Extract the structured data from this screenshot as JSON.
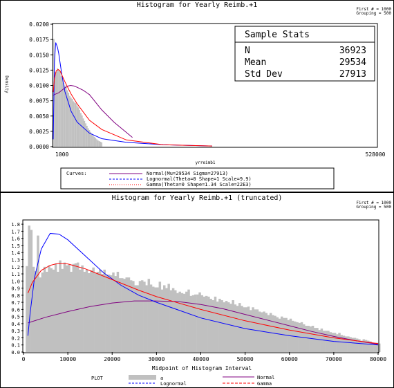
{
  "chart_data": [
    {
      "type": "histogram",
      "title": "Histogram for Yearly Reimb.+1",
      "corner_note": [
        "First # = 1000",
        "Grouping = 500"
      ],
      "xlabel": "yrreimb1",
      "ylabel": "Density",
      "x_ticks": [
        "1000",
        "528000"
      ],
      "xlim": [
        1000,
        528000
      ],
      "ylim": [
        0,
        0.02
      ],
      "y_ticks": [
        "0.0200",
        "0.0175",
        "0.0150",
        "0.0125",
        "0.0100",
        "0.0075",
        "0.0050",
        "0.0025",
        "0.0000"
      ],
      "stats_box": {
        "title": "Sample Stats",
        "rows": [
          {
            "label": "N",
            "value": "36923"
          },
          {
            "label": "Mean",
            "value": "29534"
          },
          {
            "label": "Std Dev",
            "value": "27913"
          }
        ]
      },
      "legend": {
        "label": "Curves:",
        "entries": [
          {
            "text": "Normal(Mu=29534 Sigma=27913)",
            "color": "#800080",
            "dash": "solid"
          },
          {
            "text": "Lognormal(Theta=0 Shape=1 Scale=9.9)",
            "color": "#0000ff",
            "dash": "dash"
          },
          {
            "text": "Gamma(Theta=0 Shape=1.34 Scale=22E3)",
            "color": "#ff0000",
            "dash": "dot"
          }
        ]
      },
      "bars": {
        "x": [
          1000,
          3000,
          5000,
          7000,
          9000,
          11000,
          13000,
          15000,
          17000,
          19000,
          21000,
          23000,
          25000,
          27000,
          29000,
          31000,
          33000,
          35000,
          37000,
          39000,
          41000,
          43000,
          45000,
          47000,
          49000,
          51000,
          53000,
          55000,
          57000,
          59000,
          61000,
          63000,
          65000,
          67000,
          69000,
          71000,
          73000,
          75000,
          77000,
          79000
        ],
        "values": [
          0.0176,
          0.0122,
          0.0122,
          0.0128,
          0.0126,
          0.0124,
          0.0115,
          0.0113,
          0.0104,
          0.01,
          0.0098,
          0.0092,
          0.0088,
          0.0083,
          0.008,
          0.0078,
          0.0074,
          0.0072,
          0.0071,
          0.0067,
          0.0064,
          0.006,
          0.0055,
          0.0051,
          0.0046,
          0.0042,
          0.0038,
          0.0034,
          0.003,
          0.0027,
          0.0024,
          0.0021,
          0.0018,
          0.0016,
          0.0014,
          0.0012,
          0.001,
          0.0009,
          0.0008,
          0.0007
        ],
        "color": "#c0c0c0"
      },
      "curves": [
        {
          "name": "Normal",
          "color": "#800080",
          "x": [
            1000,
            5000,
            10000,
            15000,
            20000,
            25000,
            29534,
            35000,
            40000,
            50000,
            60000,
            80000,
            100000,
            130000
          ],
          "y": [
            0.0084,
            0.0086,
            0.0088,
            0.0092,
            0.0096,
            0.0099,
            0.01,
            0.0099,
            0.0097,
            0.0092,
            0.0085,
            0.006,
            0.004,
            0.0015
          ]
        },
        {
          "name": "Lognormal",
          "color": "#0000ff",
          "x": [
            1000,
            3000,
            5000,
            8000,
            10000,
            15000,
            20000,
            30000,
            40000,
            60000,
            80000,
            120000,
            180000,
            260000
          ],
          "y": [
            0.0012,
            0.0138,
            0.017,
            0.0162,
            0.0152,
            0.0118,
            0.009,
            0.0058,
            0.004,
            0.0022,
            0.0013,
            0.0007,
            0.0003,
            0.0001
          ]
        },
        {
          "name": "Gamma",
          "color": "#ff0000",
          "x": [
            1000,
            3000,
            6000,
            9000,
            12000,
            16000,
            20000,
            30000,
            40000,
            60000,
            80000,
            120000,
            180000,
            260000
          ],
          "y": [
            0.0089,
            0.0112,
            0.0124,
            0.0126,
            0.0124,
            0.0115,
            0.0106,
            0.0086,
            0.007,
            0.0043,
            0.0028,
            0.0011,
            0.0003,
            0.0001
          ]
        }
      ]
    },
    {
      "type": "histogram",
      "title": "Histogram for Yearly Reimb.+1 (truncated)",
      "corner_note": [
        "First # = 1000",
        "Grouping = 500"
      ],
      "xlabel": "Midpoint of Histogram Interval",
      "y_ticks": [
        "1.8",
        "1.7",
        "1.6",
        "1.5",
        "1.4",
        "1.3",
        "1.2",
        "1.1",
        "1.0",
        "0.9",
        "0.8",
        "0.7",
        "0.6",
        "0.5",
        "0.4",
        "0.3",
        "0.2",
        "0.1",
        "0.0"
      ],
      "ylim": [
        0,
        1.85
      ],
      "x_ticks": [
        "0",
        "10000",
        "20000",
        "30000",
        "40000",
        "50000",
        "60000",
        "70000",
        "80000"
      ],
      "xlim": [
        0,
        80000
      ],
      "legend": {
        "label": "PLOT",
        "entries": [
          {
            "text": "a",
            "kind": "bar"
          },
          {
            "text": "Normal",
            "color": "#800080",
            "dash": "solid"
          },
          {
            "text": "Lognormal",
            "color": "#0000ff",
            "dash": "dash"
          },
          {
            "text": "Gamma",
            "color": "#ff0000",
            "dash": "dash"
          }
        ]
      },
      "bars": {
        "x_start": 500,
        "width": 500,
        "values": [
          1.21,
          1.78,
          1.72,
          1.2,
          1.14,
          1.64,
          1.05,
          1.12,
          1.2,
          1.13,
          1.22,
          1.18,
          1.16,
          1.25,
          1.13,
          1.29,
          1.17,
          1.26,
          1.22,
          1.23,
          1.13,
          1.24,
          1.25,
          1.26,
          1.16,
          1.22,
          1.13,
          1.16,
          1.11,
          1.15,
          1.19,
          1.11,
          1.13,
          1.16,
          1.1,
          1.16,
          1.09,
          1.09,
          1.08,
          1.12,
          1.07,
          1.13,
          1.04,
          1.04,
          1.03,
          1.05,
          1.05,
          1.01,
          1.0,
          0.94,
          0.94,
          1.0,
          1.01,
          0.99,
          0.94,
          1.03,
          0.95,
          0.92,
          0.91,
          0.91,
          0.99,
          0.88,
          0.94,
          0.9,
          0.96,
          0.87,
          0.9,
          0.87,
          0.83,
          0.85,
          0.83,
          0.82,
          0.85,
          0.88,
          0.79,
          0.8,
          0.81,
          0.81,
          0.84,
          0.8,
          0.78,
          0.79,
          0.78,
          0.75,
          0.73,
          0.78,
          0.71,
          0.75,
          0.73,
          0.7,
          0.72,
          0.7,
          0.68,
          0.73,
          0.67,
          0.65,
          0.69,
          0.65,
          0.63,
          0.63,
          0.64,
          0.59,
          0.63,
          0.6,
          0.6,
          0.57,
          0.56,
          0.57,
          0.55,
          0.52,
          0.55,
          0.52,
          0.51,
          0.49,
          0.47,
          0.5,
          0.48,
          0.48,
          0.45,
          0.47,
          0.44,
          0.43,
          0.42,
          0.41,
          0.42,
          0.39,
          0.37,
          0.37,
          0.36,
          0.37,
          0.34,
          0.34,
          0.31,
          0.33,
          0.3,
          0.3,
          0.3,
          0.28,
          0.27,
          0.27,
          0.25,
          0.27,
          0.24,
          0.23,
          0.22,
          0.22,
          0.21,
          0.2,
          0.2,
          0.19,
          0.18,
          0.16,
          0.18,
          0.17,
          0.16,
          0.15,
          0.13,
          0.13,
          0.13,
          0.12
        ],
        "color": "#c0c0c0"
      },
      "curves": [
        {
          "name": "Normal",
          "color": "#800080",
          "x": [
            1000,
            5000,
            10000,
            15000,
            20000,
            25000,
            29534,
            35000,
            40000,
            45000,
            50000,
            55000,
            60000,
            65000,
            70000,
            75000,
            80000
          ],
          "y": [
            0.41,
            0.49,
            0.57,
            0.64,
            0.69,
            0.72,
            0.72,
            0.71,
            0.67,
            0.61,
            0.53,
            0.45,
            0.37,
            0.29,
            0.22,
            0.16,
            0.11
          ]
        },
        {
          "name": "Lognormal",
          "color": "#0000ff",
          "x": [
            1000,
            1500,
            2500,
            4000,
            6000,
            8000,
            10000,
            14000,
            18000,
            22000,
            26000,
            30000,
            40000,
            50000,
            60000,
            70000,
            80000
          ],
          "y": [
            0.23,
            0.55,
            1.05,
            1.45,
            1.67,
            1.66,
            1.58,
            1.35,
            1.12,
            0.94,
            0.8,
            0.7,
            0.48,
            0.33,
            0.23,
            0.15,
            0.1
          ]
        },
        {
          "name": "Gamma",
          "color": "#ff0000",
          "x": [
            1000,
            2000,
            4000,
            6000,
            8000,
            10000,
            14000,
            18000,
            22000,
            26000,
            30000,
            40000,
            50000,
            60000,
            70000,
            80000
          ],
          "y": [
            0.83,
            0.98,
            1.15,
            1.22,
            1.25,
            1.24,
            1.17,
            1.07,
            0.97,
            0.87,
            0.78,
            0.6,
            0.44,
            0.31,
            0.2,
            0.12
          ]
        }
      ]
    }
  ]
}
